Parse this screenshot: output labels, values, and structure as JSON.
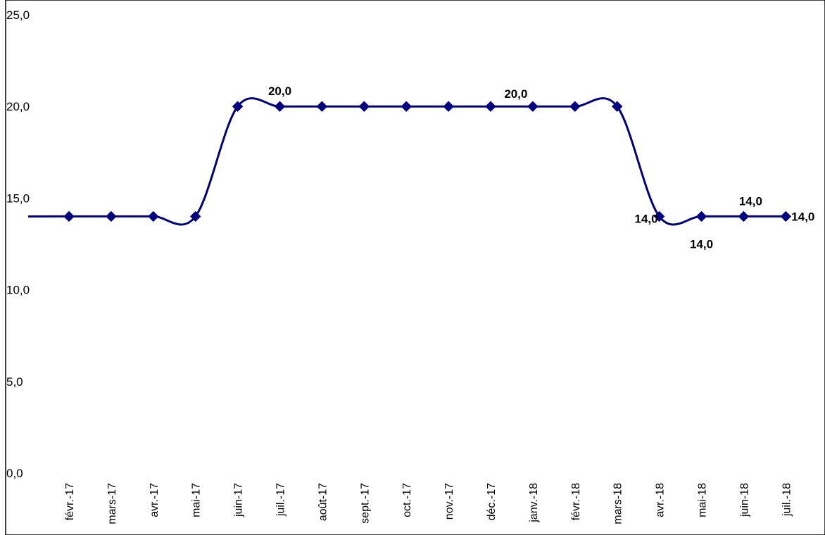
{
  "chart_data": {
    "type": "line",
    "title": "",
    "xlabel": "",
    "ylabel": "",
    "categories": [
      "févr.-17",
      "mars-17",
      "avr.-17",
      "mai-17",
      "juin-17",
      "juil.-17",
      "août-17",
      "sept.-17",
      "oct.-17",
      "nov.-17",
      "déc.-17",
      "janv.-18",
      "févr.-18",
      "mars-18",
      "avr.-18",
      "mai-18",
      "juin-18",
      "juil.-18"
    ],
    "series": [
      {
        "values": [
          14,
          14,
          14,
          14,
          20,
          20,
          20,
          20,
          20,
          20,
          20,
          20,
          20,
          20,
          14,
          14,
          14,
          14
        ]
      }
    ],
    "ylim": [
      0,
      25
    ],
    "yticks": [
      "0,0",
      "5,0",
      "10,0",
      "15,0",
      "20,0",
      "25,0"
    ],
    "data_labels": [
      {
        "index": 5,
        "text": "20,0"
      },
      {
        "index": 11,
        "text": "20,0"
      },
      {
        "index": 14,
        "text": "14,0"
      },
      {
        "index": 15,
        "text": "14,0"
      },
      {
        "index": 16,
        "text": "14,0"
      },
      {
        "index": 17,
        "text": "14,0"
      }
    ],
    "line_color": "#000080",
    "grid": false,
    "legend": "none"
  }
}
